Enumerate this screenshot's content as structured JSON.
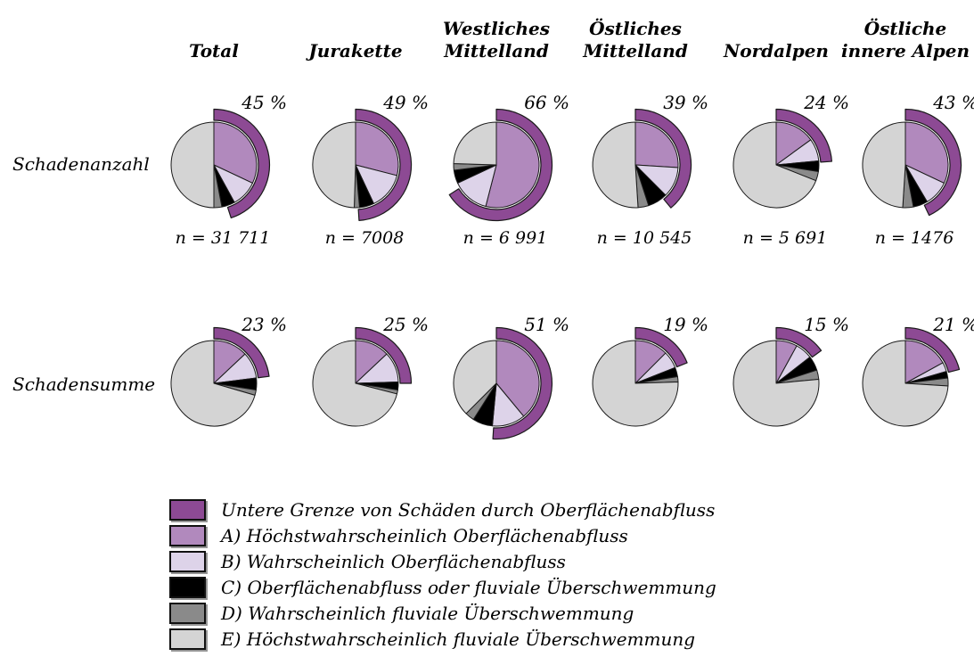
{
  "figure_title": "",
  "columns": [
    {
      "lines": [
        "Total"
      ]
    },
    {
      "lines": [
        "Jurakette"
      ]
    },
    {
      "lines": [
        "Westliches",
        "Mittelland"
      ]
    },
    {
      "lines": [
        "Östliches",
        "Mittelland"
      ]
    },
    {
      "lines": [
        "Nordalpen"
      ]
    },
    {
      "lines": [
        "Östliche",
        "innere Alpen"
      ]
    }
  ],
  "colors": {
    "outer_arc": "#8d4a94",
    "A": "#b189bd",
    "B": "#ddd3e9",
    "C": "#000000",
    "D": "#8a8a8a",
    "E": "#d4d4d4",
    "stroke": "#1a1a1a"
  },
  "chart_data": {
    "type": "pie",
    "slice_order": [
      "A",
      "B",
      "C",
      "D",
      "E"
    ],
    "slice_categories": [
      "A) Höchstwahrscheinlich Oberflächenabfluss",
      "B) Wahrscheinlich Oberflächenabfluss",
      "C) Oberflächenabfluss oder fluviale Überschwemmung",
      "D) Wahrscheinlich fluviale Überschwemmung",
      "E) Höchstwahrscheinlich fluviale Überschwemmung"
    ],
    "outer_arc_meaning": "Untere Grenze von Schäden durch Oberflächenabfluss",
    "unit": "%",
    "rows": [
      {
        "label": "Schadenanzahl",
        "pies": [
          {
            "column": "Total",
            "pct_label": "45 %",
            "outer_arc_pct": 45,
            "n_label": "n = 31 711",
            "slices": [
              32,
              10,
              5,
              3,
              50
            ]
          },
          {
            "column": "Jurakette",
            "pct_label": "49 %",
            "outer_arc_pct": 49,
            "n_label": "n = 7008",
            "slices": [
              29,
              14,
              5.5,
              2,
              49.5
            ]
          },
          {
            "column": "Westliches Mittelland",
            "pct_label": "66 %",
            "outer_arc_pct": 66,
            "n_label": "n = 6 991",
            "slices": [
              54,
              14,
              5,
              2.5,
              24.5
            ]
          },
          {
            "column": "Östliches Mittelland",
            "pct_label": "39 %",
            "outer_arc_pct": 39,
            "n_label": "n = 10 545",
            "slices": [
              26,
              11.5,
              7.5,
              4,
              51
            ]
          },
          {
            "column": "Nordalpen",
            "pct_label": "24 %",
            "outer_arc_pct": 24,
            "n_label": "n = 5 691",
            "slices": [
              15,
              8.5,
              4,
              3.5,
              69
            ]
          },
          {
            "column": "Östliche innere Alpen",
            "pct_label": "43 %",
            "outer_arc_pct": 43,
            "n_label": "n = 1476",
            "slices": [
              32,
              9.5,
              5.5,
              4,
              49
            ]
          }
        ]
      },
      {
        "label": "Schadensumme",
        "pies": [
          {
            "column": "Total",
            "pct_label": "23 %",
            "outer_arc_pct": 23,
            "n_label": "",
            "slices": [
              13,
              10,
              4.5,
              2,
              70.5
            ]
          },
          {
            "column": "Jurakette",
            "pct_label": "25 %",
            "outer_arc_pct": 25,
            "n_label": "",
            "slices": [
              13,
              11.5,
              3,
              1.5,
              71
            ]
          },
          {
            "column": "Westliches Mittelland",
            "pct_label": "51 %",
            "outer_arc_pct": 51,
            "n_label": "",
            "slices": [
              39,
              12.5,
              7.5,
              3.5,
              37.5
            ]
          },
          {
            "column": "Östliches Mittelland",
            "pct_label": "19 %",
            "outer_arc_pct": 19,
            "n_label": "",
            "slices": [
              12.5,
              6.5,
              3.5,
              2,
              75.5
            ]
          },
          {
            "column": "Nordalpen",
            "pct_label": "15 %",
            "outer_arc_pct": 15,
            "n_label": "",
            "slices": [
              8,
              6.5,
              5.5,
              3.5,
              76.5
            ]
          },
          {
            "column": "Östliche innere Alpen",
            "pct_label": "21 %",
            "outer_arc_pct": 21,
            "n_label": "",
            "slices": [
              17,
              3.5,
              2.5,
              3,
              74
            ]
          }
        ]
      }
    ]
  },
  "legend": {
    "items": [
      {
        "key": "outer_arc",
        "color": "#8d4a94",
        "label": "Untere Grenze von Schäden durch Oberflächenabfluss"
      },
      {
        "key": "A",
        "color": "#b189bd",
        "label": "A) Höchstwahrscheinlich Oberflächenabfluss"
      },
      {
        "key": "B",
        "color": "#ddd3e9",
        "label": "B) Wahrscheinlich Oberflächenabfluss"
      },
      {
        "key": "C",
        "color": "#000000",
        "label": "C) Oberflächenabfluss oder fluviale Überschwemmung"
      },
      {
        "key": "D",
        "color": "#8a8a8a",
        "label": "D) Wahrscheinlich fluviale Überschwemmung"
      },
      {
        "key": "E",
        "color": "#d4d4d4",
        "label": "E) Höchstwahrscheinlich fluviale Überschwemmung"
      }
    ]
  }
}
